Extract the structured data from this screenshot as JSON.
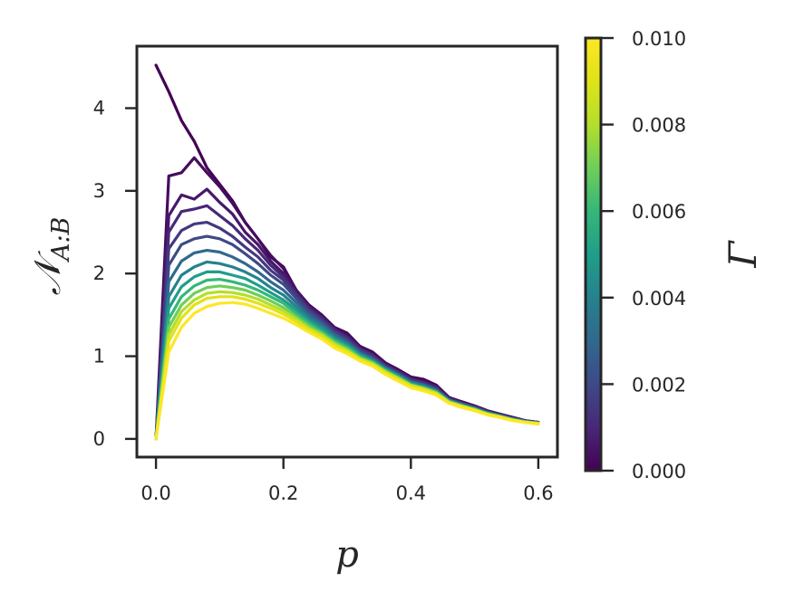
{
  "chart_data": {
    "type": "line",
    "xlabel": "p",
    "ylabel": "𝒩",
    "ylabel_subscript": "A:B",
    "xlim": [
      -0.03,
      0.63
    ],
    "ylim": [
      -0.22,
      4.75
    ],
    "xticks": [
      0.0,
      0.2,
      0.4,
      0.6
    ],
    "xtick_labels": [
      "0.0",
      "0.2",
      "0.4",
      "0.6"
    ],
    "yticks": [
      0,
      1,
      2,
      3,
      4
    ],
    "ytick_labels": [
      "0",
      "1",
      "2",
      "3",
      "4"
    ],
    "grid": false,
    "x": [
      0.0,
      0.02,
      0.04,
      0.06,
      0.08,
      0.1,
      0.12,
      0.14,
      0.16,
      0.18,
      0.2,
      0.22,
      0.24,
      0.26,
      0.28,
      0.3,
      0.32,
      0.34,
      0.36,
      0.38,
      0.4,
      0.42,
      0.44,
      0.46,
      0.48,
      0.5,
      0.52,
      0.54,
      0.56,
      0.58,
      0.6
    ],
    "colorbar": {
      "label": "Γ",
      "colormap": "viridis",
      "range": [
        0.0,
        0.01
      ],
      "ticks": [
        0.0,
        0.002,
        0.004,
        0.006,
        0.008,
        0.01
      ],
      "tick_labels": [
        "0.000",
        "0.002",
        "0.004",
        "0.006",
        "0.008",
        "0.010"
      ]
    },
    "series": [
      {
        "gamma": 0.0,
        "values": [
          4.52,
          4.2,
          3.85,
          3.6,
          3.28,
          3.08,
          2.88,
          2.62,
          2.42,
          2.2,
          2.08,
          1.8,
          1.62,
          1.5,
          1.35,
          1.28,
          1.12,
          1.05,
          0.92,
          0.84,
          0.75,
          0.72,
          0.65,
          0.5,
          0.45,
          0.4,
          0.34,
          0.3,
          0.26,
          0.22,
          0.2
        ]
      },
      {
        "gamma": 0.0003,
        "values": [
          0.0,
          3.18,
          3.22,
          3.4,
          3.22,
          3.05,
          2.85,
          2.62,
          2.42,
          2.22,
          2.06,
          1.8,
          1.62,
          1.5,
          1.35,
          1.26,
          1.12,
          1.04,
          0.92,
          0.83,
          0.74,
          0.7,
          0.64,
          0.5,
          0.44,
          0.4,
          0.34,
          0.3,
          0.26,
          0.22,
          0.2
        ]
      },
      {
        "gamma": 0.0006,
        "values": [
          0.0,
          2.7,
          2.95,
          2.9,
          3.02,
          2.86,
          2.72,
          2.5,
          2.35,
          2.15,
          2.0,
          1.78,
          1.6,
          1.48,
          1.33,
          1.24,
          1.1,
          1.02,
          0.9,
          0.82,
          0.73,
          0.69,
          0.63,
          0.49,
          0.44,
          0.39,
          0.33,
          0.29,
          0.25,
          0.22,
          0.2
        ]
      },
      {
        "gamma": 0.001,
        "values": [
          0.0,
          2.5,
          2.75,
          2.78,
          2.82,
          2.7,
          2.58,
          2.42,
          2.28,
          2.1,
          1.96,
          1.76,
          1.58,
          1.46,
          1.32,
          1.23,
          1.09,
          1.01,
          0.89,
          0.81,
          0.72,
          0.68,
          0.62,
          0.48,
          0.43,
          0.39,
          0.33,
          0.29,
          0.25,
          0.22,
          0.2
        ]
      },
      {
        "gamma": 0.0015,
        "values": [
          0.0,
          2.3,
          2.52,
          2.6,
          2.62,
          2.55,
          2.45,
          2.32,
          2.2,
          2.04,
          1.92,
          1.73,
          1.56,
          1.44,
          1.3,
          1.21,
          1.08,
          1.0,
          0.88,
          0.8,
          0.71,
          0.67,
          0.61,
          0.48,
          0.43,
          0.38,
          0.33,
          0.29,
          0.25,
          0.21,
          0.2
        ]
      },
      {
        "gamma": 0.002,
        "values": [
          0.0,
          2.1,
          2.35,
          2.42,
          2.45,
          2.42,
          2.35,
          2.24,
          2.12,
          1.98,
          1.87,
          1.7,
          1.54,
          1.42,
          1.28,
          1.19,
          1.06,
          0.98,
          0.87,
          0.79,
          0.7,
          0.66,
          0.6,
          0.47,
          0.42,
          0.38,
          0.32,
          0.28,
          0.24,
          0.21,
          0.19
        ]
      },
      {
        "gamma": 0.003,
        "values": [
          0.0,
          1.9,
          2.15,
          2.25,
          2.28,
          2.26,
          2.2,
          2.12,
          2.02,
          1.9,
          1.8,
          1.65,
          1.5,
          1.39,
          1.26,
          1.17,
          1.04,
          0.97,
          0.86,
          0.78,
          0.69,
          0.65,
          0.59,
          0.47,
          0.42,
          0.37,
          0.32,
          0.28,
          0.24,
          0.21,
          0.19
        ]
      },
      {
        "gamma": 0.004,
        "values": [
          0.0,
          1.72,
          1.98,
          2.08,
          2.14,
          2.12,
          2.08,
          2.02,
          1.94,
          1.83,
          1.74,
          1.6,
          1.46,
          1.36,
          1.23,
          1.15,
          1.03,
          0.95,
          0.85,
          0.77,
          0.68,
          0.64,
          0.58,
          0.46,
          0.41,
          0.37,
          0.31,
          0.28,
          0.24,
          0.21,
          0.19
        ]
      },
      {
        "gamma": 0.005,
        "values": [
          0.0,
          1.58,
          1.84,
          1.96,
          2.02,
          2.02,
          1.98,
          1.94,
          1.86,
          1.77,
          1.68,
          1.56,
          1.43,
          1.33,
          1.21,
          1.13,
          1.01,
          0.94,
          0.84,
          0.76,
          0.67,
          0.63,
          0.57,
          0.46,
          0.41,
          0.36,
          0.31,
          0.27,
          0.24,
          0.21,
          0.19
        ]
      },
      {
        "gamma": 0.006,
        "values": [
          0.0,
          1.45,
          1.72,
          1.85,
          1.92,
          1.93,
          1.9,
          1.86,
          1.8,
          1.72,
          1.64,
          1.52,
          1.4,
          1.3,
          1.19,
          1.11,
          1.0,
          0.93,
          0.83,
          0.75,
          0.66,
          0.62,
          0.57,
          0.45,
          0.4,
          0.36,
          0.31,
          0.27,
          0.23,
          0.21,
          0.19
        ]
      },
      {
        "gamma": 0.007,
        "values": [
          0.0,
          1.35,
          1.62,
          1.76,
          1.83,
          1.85,
          1.83,
          1.8,
          1.74,
          1.67,
          1.59,
          1.48,
          1.37,
          1.28,
          1.17,
          1.09,
          0.98,
          0.92,
          0.82,
          0.74,
          0.65,
          0.61,
          0.56,
          0.45,
          0.4,
          0.36,
          0.3,
          0.27,
          0.23,
          0.2,
          0.19
        ]
      },
      {
        "gamma": 0.008,
        "values": [
          0.0,
          1.26,
          1.54,
          1.68,
          1.76,
          1.78,
          1.77,
          1.74,
          1.69,
          1.62,
          1.55,
          1.45,
          1.34,
          1.26,
          1.15,
          1.07,
          0.97,
          0.91,
          0.81,
          0.73,
          0.65,
          0.61,
          0.55,
          0.44,
          0.4,
          0.35,
          0.3,
          0.27,
          0.23,
          0.2,
          0.19
        ]
      },
      {
        "gamma": 0.009,
        "values": [
          0.0,
          1.18,
          1.46,
          1.62,
          1.7,
          1.72,
          1.72,
          1.69,
          1.64,
          1.58,
          1.51,
          1.42,
          1.32,
          1.24,
          1.13,
          1.06,
          0.96,
          0.9,
          0.8,
          0.72,
          0.64,
          0.6,
          0.55,
          0.44,
          0.39,
          0.35,
          0.3,
          0.26,
          0.23,
          0.2,
          0.18
        ]
      },
      {
        "gamma": 0.01,
        "values": [
          0.0,
          1.05,
          1.35,
          1.52,
          1.6,
          1.64,
          1.65,
          1.63,
          1.58,
          1.52,
          1.46,
          1.38,
          1.29,
          1.21,
          1.1,
          1.03,
          0.94,
          0.88,
          0.78,
          0.7,
          0.62,
          0.58,
          0.53,
          0.43,
          0.38,
          0.34,
          0.29,
          0.26,
          0.22,
          0.2,
          0.18
        ]
      }
    ]
  }
}
